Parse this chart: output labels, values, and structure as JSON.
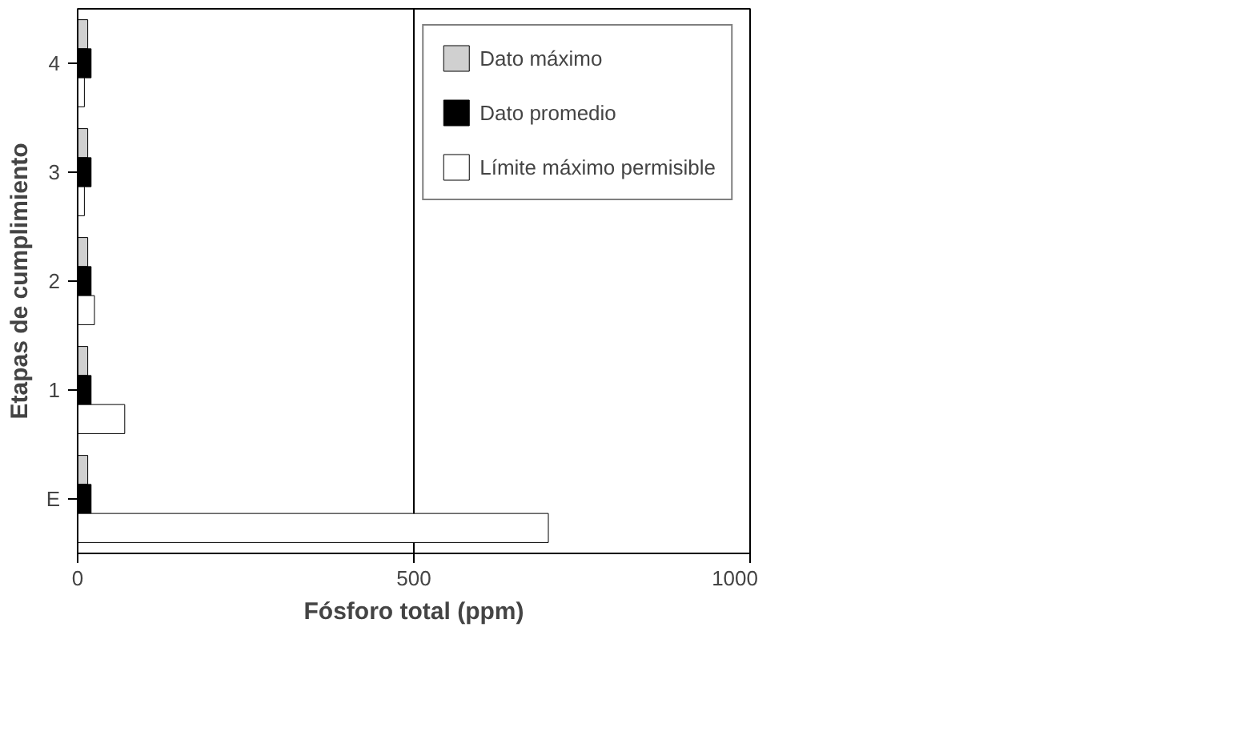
{
  "chart_data": {
    "type": "bar",
    "orientation": "horizontal",
    "xlabel": "Fósforo total (ppm)",
    "ylabel": "Etapas de cumplimiento",
    "categories": [
      "4",
      "3",
      "2",
      "1",
      "E"
    ],
    "series": [
      {
        "name": "Dato máximo",
        "color": "#d0d0d0",
        "values": [
          15,
          15,
          15,
          15,
          15
        ]
      },
      {
        "name": "Dato promedio",
        "color": "#000000",
        "values": [
          20,
          20,
          20,
          20,
          20
        ]
      },
      {
        "name": "Límite máximo permisible",
        "color": "#ffffff",
        "values": [
          10,
          10,
          25,
          70,
          700
        ]
      }
    ],
    "xlim": [
      0,
      1000
    ],
    "xticks": [
      0,
      500,
      1000
    ],
    "grid": "x",
    "legend": "right"
  }
}
